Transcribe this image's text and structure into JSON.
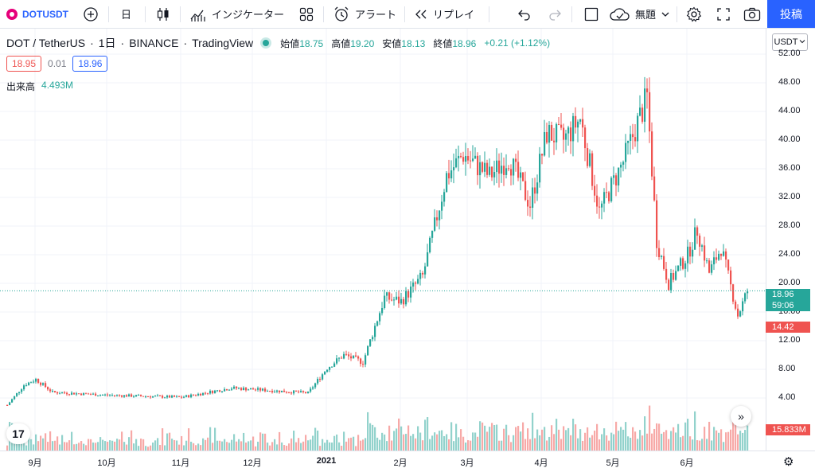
{
  "toolbar": {
    "symbol": "DOTUSDT",
    "interval": "日",
    "indicators_label": "インジケーター",
    "alert_label": "アラート",
    "replay_label": "リプレイ",
    "layout_name": "無題",
    "post_label": "投稿"
  },
  "legend": {
    "pair": "DOT / TetherUS",
    "interval": "1日",
    "exchange": "BINANCE",
    "source": "TradingView",
    "open_label": "始値",
    "open": "18.75",
    "high_label": "高値",
    "high": "19.20",
    "low_label": "安値",
    "low": "18.13",
    "close_label": "終値",
    "close": "18.96",
    "change": "+0.21 (+1.12%)",
    "sell_price": "18.95",
    "spread": "0.01",
    "buy_price": "18.96",
    "volume_label": "出来高",
    "volume": "4.493M"
  },
  "price_axis": {
    "currency": "USDT",
    "ticks": [
      "52.00",
      "48.00",
      "44.00",
      "40.00",
      "36.00",
      "32.00",
      "28.00",
      "24.00",
      "20.00",
      "16.00",
      "12.00",
      "8.00",
      "4.00"
    ],
    "last_price": "18.96",
    "countdown": "59:06",
    "low_marker": "14.42",
    "volume_marker": "15.833M"
  },
  "time_axis": {
    "ticks": [
      {
        "label": "9月",
        "bold": false
      },
      {
        "label": "10月",
        "bold": false
      },
      {
        "label": "11月",
        "bold": false
      },
      {
        "label": "12月",
        "bold": false
      },
      {
        "label": "2021",
        "bold": true
      },
      {
        "label": "2月",
        "bold": false
      },
      {
        "label": "3月",
        "bold": false
      },
      {
        "label": "4月",
        "bold": false
      },
      {
        "label": "5月",
        "bold": false
      },
      {
        "label": "6月",
        "bold": false
      }
    ]
  },
  "colors": {
    "up": "#26a69a",
    "down": "#ef5350",
    "accent": "#2962ff",
    "grid": "#f0f3fa"
  },
  "logo_text": "17",
  "chart_data": {
    "type": "candlestick",
    "symbol": "DOTUSDT",
    "exchange": "BINANCE",
    "interval": "1D",
    "ylim": [
      0,
      54
    ],
    "y_ticks": [
      4,
      8,
      12,
      16,
      20,
      24,
      28,
      32,
      36,
      40,
      44,
      48,
      52
    ],
    "last_price": 18.96,
    "grid": true,
    "price_keypoints": [
      [
        "2020-08-20",
        3.0
      ],
      [
        "2020-08-27",
        5.8
      ],
      [
        "2020-09-01",
        6.6
      ],
      [
        "2020-09-08",
        4.8
      ],
      [
        "2020-10-01",
        4.4
      ],
      [
        "2020-11-01",
        4.1
      ],
      [
        "2020-11-22",
        5.4
      ],
      [
        "2020-12-01",
        5.2
      ],
      [
        "2020-12-24",
        4.7
      ],
      [
        "2021-01-01",
        8.2
      ],
      [
        "2021-01-08",
        10.0
      ],
      [
        "2021-01-16",
        9.0
      ],
      [
        "2021-01-25",
        18.0
      ],
      [
        "2021-02-01",
        17.5
      ],
      [
        "2021-02-10",
        21.0
      ],
      [
        "2021-02-20",
        35.0
      ],
      [
        "2021-02-27",
        38.0
      ],
      [
        "2021-03-10",
        35.0
      ],
      [
        "2021-03-18",
        37.5
      ],
      [
        "2021-03-27",
        31.0
      ],
      [
        "2021-04-03",
        41.0
      ],
      [
        "2021-04-10",
        40.0
      ],
      [
        "2021-04-17",
        43.0
      ],
      [
        "2021-04-25",
        30.0
      ],
      [
        "2021-05-05",
        37.0
      ],
      [
        "2021-05-15",
        46.0
      ],
      [
        "2021-05-19",
        26.0
      ],
      [
        "2021-05-24",
        20.0
      ],
      [
        "2021-06-01",
        24.0
      ],
      [
        "2021-06-05",
        27.5
      ],
      [
        "2021-06-10",
        21.5
      ],
      [
        "2021-06-15",
        25.0
      ],
      [
        "2021-06-22",
        15.5
      ],
      [
        "2021-06-26",
        18.96
      ]
    ],
    "volume_marker": "15.833M"
  }
}
